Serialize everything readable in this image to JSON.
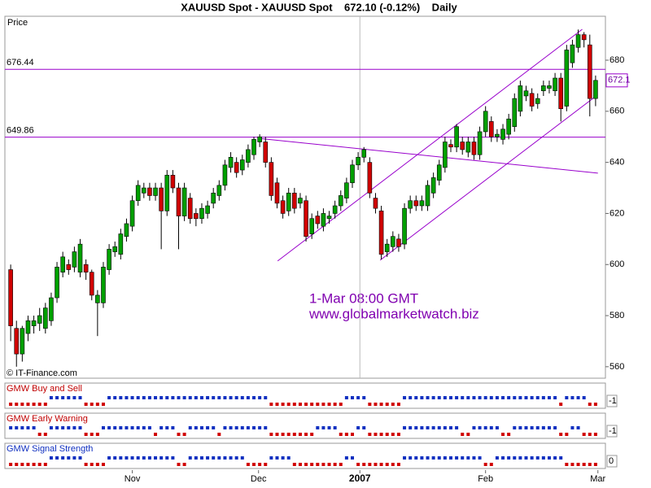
{
  "chart_data": {
    "type": "candlestick",
    "title": "XAUUSD Spot - XAUUSD Spot    672.10 (-0.12%)    Daily",
    "axis_label": "Price",
    "credit": "© IT-Finance.com",
    "annotations": [
      "1-Mar 08:00 GMT",
      "www.globalmarketwatch.biz"
    ],
    "up_color": "#00a000",
    "down_color": "#d00000",
    "line_color": "#9900cc",
    "ylim": [
      555.5,
      697.2
    ],
    "yticks": [
      560,
      580,
      600,
      620,
      640,
      660,
      680
    ],
    "xlim": [
      -1,
      102.7
    ],
    "xticks": [
      {
        "value": 21,
        "label": "Nov"
      },
      {
        "value": 42.8,
        "label": "Dec"
      },
      {
        "value": 60.3,
        "label": "2007",
        "divider": true
      },
      {
        "value": 82,
        "label": "Feb"
      },
      {
        "value": 101.4,
        "label": "Mar"
      }
    ],
    "levels": [
      676.44,
      649.86
    ],
    "trendlines": [
      {
        "x": [
          46.1,
          98.7
        ],
        "y": [
          601.4,
          692.1
        ]
      },
      {
        "x": [
          63.8,
          101.1
        ],
        "y": [
          601.7,
          666
        ]
      },
      {
        "x": [
          42.8,
          101.4
        ],
        "y": [
          649.4,
          635.8
        ]
      }
    ],
    "last": 672.1,
    "ohlc": [
      [
        598,
        600,
        570,
        576
      ],
      [
        575,
        578,
        560,
        565
      ],
      [
        565,
        576,
        562,
        575
      ],
      [
        573,
        580,
        570,
        578
      ],
      [
        576,
        580,
        573,
        578
      ],
      [
        577,
        583,
        574,
        580
      ],
      [
        575,
        585,
        573,
        583
      ],
      [
        578,
        589,
        576,
        587
      ],
      [
        587,
        601,
        585,
        599
      ],
      [
        597,
        605,
        595,
        603
      ],
      [
        600,
        602,
        596,
        598
      ],
      [
        599,
        607,
        597,
        605
      ],
      [
        597,
        610,
        595,
        608
      ],
      [
        600,
        602,
        594,
        597
      ],
      [
        597,
        598,
        586,
        588
      ],
      [
        585,
        590,
        572,
        588
      ],
      [
        585,
        601,
        583,
        599
      ],
      [
        598,
        608,
        596,
        606
      ],
      [
        605,
        609,
        603,
        607
      ],
      [
        604,
        614,
        602,
        612
      ],
      [
        611,
        618,
        609,
        616
      ],
      [
        615,
        627,
        613,
        625
      ],
      [
        625,
        633,
        623,
        631
      ],
      [
        628,
        632,
        626,
        630
      ],
      [
        630,
        632,
        625,
        627
      ],
      [
        627,
        632,
        625,
        630
      ],
      [
        630,
        632,
        606,
        621
      ],
      [
        621,
        637,
        619,
        635
      ],
      [
        635,
        637,
        628,
        630
      ],
      [
        630,
        632,
        606,
        619
      ],
      [
        619,
        632,
        617,
        630
      ],
      [
        626,
        628,
        616,
        618
      ],
      [
        620,
        622,
        615,
        618
      ],
      [
        618,
        624,
        616,
        622
      ],
      [
        620,
        625,
        618,
        623
      ],
      [
        624,
        630,
        622,
        628
      ],
      [
        627,
        633,
        625,
        631
      ],
      [
        631,
        641,
        629,
        639
      ],
      [
        638,
        644,
        636,
        642
      ],
      [
        640,
        642,
        634,
        636
      ],
      [
        637,
        643,
        635,
        641
      ],
      [
        640,
        647,
        638,
        645
      ],
      [
        643,
        650,
        641,
        649
      ],
      [
        648,
        651,
        646,
        650
      ],
      [
        648,
        650,
        638,
        640
      ],
      [
        640,
        642,
        625,
        627
      ],
      [
        632,
        634,
        622,
        624
      ],
      [
        625,
        627,
        618,
        620
      ],
      [
        621,
        630,
        619,
        628
      ],
      [
        628,
        630,
        620,
        622
      ],
      [
        624,
        628,
        622,
        626
      ],
      [
        625,
        627,
        609,
        611
      ],
      [
        612,
        620,
        610,
        618
      ],
      [
        619,
        621,
        614,
        616
      ],
      [
        615,
        622,
        613,
        620
      ],
      [
        618,
        621,
        616,
        619
      ],
      [
        620,
        625,
        618,
        623
      ],
      [
        623,
        629,
        621,
        627
      ],
      [
        626,
        634,
        624,
        632
      ],
      [
        632,
        641,
        630,
        639
      ],
      [
        639,
        644,
        637,
        642
      ],
      [
        642,
        646,
        640,
        645
      ],
      [
        640,
        642,
        626,
        628
      ],
      [
        626,
        628,
        620,
        622
      ],
      [
        621,
        623,
        602,
        604
      ],
      [
        605,
        610,
        603,
        608
      ],
      [
        607,
        613,
        605,
        611
      ],
      [
        610,
        612,
        605,
        607
      ],
      [
        608,
        624,
        606,
        622
      ],
      [
        622,
        627,
        620,
        625
      ],
      [
        625,
        627,
        621,
        623
      ],
      [
        623,
        627,
        621,
        625
      ],
      [
        623,
        633,
        621,
        631
      ],
      [
        628,
        636,
        626,
        634
      ],
      [
        633,
        641,
        631,
        639
      ],
      [
        638,
        650,
        636,
        648
      ],
      [
        647,
        649,
        644,
        646
      ],
      [
        646,
        655,
        644,
        654
      ],
      [
        648,
        650,
        643,
        645
      ],
      [
        644,
        650,
        642,
        648
      ],
      [
        648,
        650,
        641,
        643
      ],
      [
        643,
        654,
        641,
        652
      ],
      [
        652,
        662,
        650,
        660
      ],
      [
        656,
        658,
        648,
        650
      ],
      [
        650,
        653,
        648,
        651
      ],
      [
        649,
        655,
        647,
        653
      ],
      [
        651,
        659,
        649,
        657
      ],
      [
        654,
        667,
        652,
        665
      ],
      [
        660,
        672,
        658,
        670
      ],
      [
        666,
        670,
        664,
        668
      ],
      [
        667,
        669,
        660,
        662
      ],
      [
        663,
        667,
        661,
        665
      ],
      [
        668,
        672,
        666,
        670
      ],
      [
        669,
        672,
        667,
        670
      ],
      [
        668,
        675,
        666,
        673
      ],
      [
        673,
        675,
        656,
        661
      ],
      [
        662,
        686,
        660,
        684
      ],
      [
        679,
        688,
        677,
        686
      ],
      [
        685,
        692,
        683,
        690
      ],
      [
        690,
        691,
        685,
        688
      ],
      [
        686,
        690,
        658,
        665
      ],
      [
        665,
        674,
        662,
        672.1
      ]
    ],
    "indicators": [
      {
        "name": "GMW Buy and Sell",
        "current": -1,
        "up_color": "#1030c0",
        "down_color": "#d00000",
        "values": [
          -1,
          -1,
          -1,
          -1,
          -1,
          -1,
          -1,
          1,
          1,
          1,
          1,
          1,
          1,
          -1,
          -1,
          -1,
          -1,
          1,
          1,
          1,
          1,
          1,
          1,
          1,
          1,
          1,
          1,
          1,
          1,
          1,
          1,
          1,
          1,
          1,
          1,
          1,
          1,
          1,
          1,
          1,
          1,
          1,
          1,
          1,
          1,
          -1,
          -1,
          -1,
          -1,
          -1,
          -1,
          -1,
          -1,
          -1,
          -1,
          -1,
          -1,
          -1,
          1,
          1,
          1,
          1,
          -1,
          -1,
          -1,
          -1,
          -1,
          -1,
          1,
          1,
          1,
          1,
          1,
          1,
          1,
          1,
          1,
          1,
          1,
          1,
          1,
          1,
          1,
          1,
          1,
          1,
          1,
          1,
          1,
          1,
          1,
          1,
          1,
          1,
          1,
          -1,
          1,
          1,
          1,
          1,
          -1,
          -1
        ]
      },
      {
        "name": "GMW Early Warning",
        "current": -1,
        "up_color": "#1030c0",
        "down_color": "#d00000",
        "values": [
          1,
          1,
          1,
          1,
          1,
          -1,
          -1,
          1,
          1,
          1,
          1,
          1,
          1,
          -1,
          -1,
          -1,
          1,
          1,
          1,
          1,
          1,
          1,
          1,
          1,
          1,
          -1,
          1,
          1,
          1,
          -1,
          -1,
          1,
          1,
          1,
          1,
          1,
          -1,
          1,
          1,
          1,
          1,
          1,
          1,
          1,
          1,
          -1,
          -1,
          -1,
          -1,
          -1,
          -1,
          -1,
          -1,
          1,
          1,
          1,
          1,
          -1,
          -1,
          -1,
          1,
          1,
          -1,
          -1,
          -1,
          -1,
          -1,
          -1,
          1,
          1,
          1,
          1,
          1,
          1,
          1,
          1,
          1,
          1,
          -1,
          -1,
          1,
          1,
          1,
          1,
          1,
          -1,
          -1,
          1,
          1,
          1,
          1,
          1,
          1,
          1,
          1,
          -1,
          -1,
          1,
          1,
          -1,
          -1,
          -1
        ]
      },
      {
        "name": "GMW Signal Strength",
        "current": 0,
        "up_color": "#1030c0",
        "down_color": "#d00000",
        "values": [
          -1,
          -1,
          -1,
          -1,
          -1,
          -1,
          -1,
          1,
          1,
          1,
          1,
          1,
          1,
          -1,
          -1,
          -1,
          -1,
          1,
          1,
          1,
          1,
          1,
          1,
          1,
          1,
          1,
          1,
          1,
          1,
          -1,
          -1,
          1,
          1,
          1,
          1,
          1,
          1,
          1,
          1,
          1,
          1,
          -1,
          -1,
          -1,
          -1,
          1,
          1,
          1,
          1,
          -1,
          -1,
          -1,
          -1,
          -1,
          -1,
          -1,
          -1,
          -1,
          1,
          1,
          -1,
          -1,
          -1,
          -1,
          -1,
          -1,
          -1,
          -1,
          1,
          1,
          1,
          1,
          1,
          1,
          1,
          1,
          1,
          1,
          1,
          1,
          1,
          1,
          -1,
          -1,
          1,
          1,
          1,
          1,
          1,
          1,
          1,
          1,
          1,
          1,
          1,
          1,
          -1,
          -1,
          -1,
          -1,
          -1,
          -1
        ]
      }
    ]
  }
}
